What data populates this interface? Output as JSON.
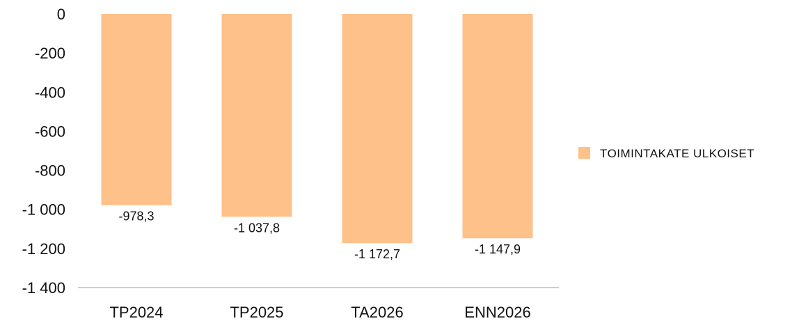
{
  "chart_data": {
    "type": "bar",
    "categories": [
      "TP2024",
      "TP2025",
      "TA2026",
      "ENN2026"
    ],
    "series": [
      {
        "name": "TOIMINTAKATE ULKOISET",
        "values": [
          -978.3,
          -1037.8,
          -1172.7,
          -1147.9
        ],
        "labels": [
          "-978,3",
          "-1 037,8",
          "-1 172,7",
          "-1 147,9"
        ],
        "color": "#FEC18A"
      }
    ],
    "yticks": [
      0,
      -200,
      -400,
      -600,
      -800,
      -1000,
      -1200,
      -1400
    ],
    "ytick_labels": [
      "0",
      "-200",
      "-400",
      "-600",
      "-800",
      "-1 000",
      "-1 200",
      "-1 400"
    ],
    "ylim": [
      -1400,
      0
    ],
    "grid": false,
    "legend": {
      "position": "right",
      "entries": [
        "TOIMINTAKATE ULKOISET"
      ]
    }
  }
}
